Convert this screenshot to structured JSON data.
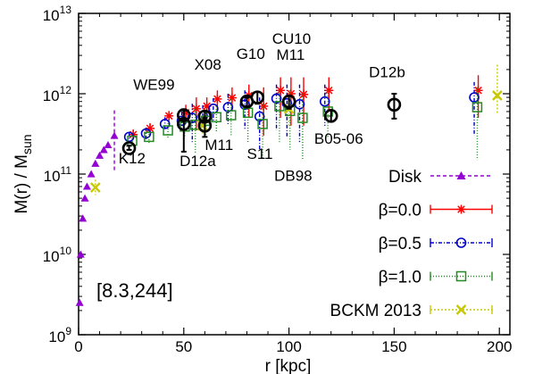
{
  "chart_data": {
    "type": "scatter",
    "xlabel": "r [kpc]",
    "ylabel": "M(r) / M",
    "ylabel_sub": "sun",
    "xlim": [
      0,
      205
    ],
    "ylim_log10": [
      9,
      13
    ],
    "y_scale": "log",
    "x_ticks": [
      0,
      50,
      100,
      150,
      200
    ],
    "y_ticks": [
      {
        "base": "10",
        "exp": "9",
        "log": 9
      },
      {
        "base": "10",
        "exp": "10",
        "log": 10
      },
      {
        "base": "10",
        "exp": "11",
        "log": 11
      },
      {
        "base": "10",
        "exp": "12",
        "log": 12
      },
      {
        "base": "10",
        "exp": "13",
        "log": 13
      }
    ],
    "panel_label": "[8.3,244]",
    "legend_position": "right",
    "series": [
      {
        "name": "Disk",
        "color": "#9400d3",
        "marker": "triangle",
        "points": [
          {
            "x": 0.5,
            "y": 2500000000.0
          },
          {
            "x": 1.0,
            "y": 10000000000.0
          },
          {
            "x": 2.0,
            "y": 28000000000.0
          },
          {
            "x": 3.0,
            "y": 50000000000.0
          },
          {
            "x": 4.0,
            "y": 70000000000.0
          },
          {
            "x": 6.0,
            "y": 100000000000.0
          },
          {
            "x": 8.0,
            "y": 135000000000.0
          },
          {
            "x": 10.0,
            "y": 170000000000.0
          },
          {
            "x": 12.0,
            "y": 200000000000.0
          },
          {
            "x": 14.0,
            "y": 230000000000.0
          },
          {
            "x": 17.0,
            "y": 300000000000.0,
            "lo": 110000000000.0,
            "hi": 620000000000.0
          }
        ]
      },
      {
        "name": "β=0.0",
        "color": "#ff0000",
        "marker": "star",
        "points": [
          {
            "x": 25,
            "y": 310000000000.0,
            "lo": 270000000000.0,
            "hi": 360000000000.0
          },
          {
            "x": 33,
            "y": 370000000000.0,
            "lo": 320000000000.0,
            "hi": 430000000000.0
          },
          {
            "x": 42,
            "y": 530000000000.0,
            "lo": 460000000000.0,
            "hi": 610000000000.0
          },
          {
            "x": 50,
            "y": 580000000000.0,
            "lo": 460000000000.0,
            "hi": 730000000000.0
          },
          {
            "x": 55,
            "y": 650000000000.0,
            "lo": 350000000000.0,
            "hi": 900000000000.0
          },
          {
            "x": 60,
            "y": 700000000000.0,
            "lo": 550000000000.0,
            "hi": 900000000000.0
          },
          {
            "x": 65,
            "y": 860000000000.0,
            "lo": 650000000000.0,
            "hi": 1100000000000.0
          },
          {
            "x": 72,
            "y": 890000000000.0,
            "lo": 600000000000.0,
            "hi": 1200000000000.0
          },
          {
            "x": 80,
            "y": 950000000000.0,
            "lo": 500000000000.0,
            "hi": 1300000000000.0
          },
          {
            "x": 87,
            "y": 700000000000.0,
            "lo": 300000000000.0,
            "hi": 1200000000000.0
          },
          {
            "x": 95,
            "y": 1100000000000.0,
            "lo": 500000000000.0,
            "hi": 1600000000000.0
          },
          {
            "x": 100,
            "y": 1000000000000.0,
            "lo": 400000000000.0,
            "hi": 1600000000000.0
          },
          {
            "x": 106,
            "y": 980000000000.0,
            "lo": 400000000000.0,
            "hi": 1600000000000.0
          },
          {
            "x": 118,
            "y": 1100000000000.0,
            "lo": 600000000000.0,
            "hi": 1600000000000.0
          },
          {
            "x": 189,
            "y": 1100000000000.0,
            "lo": 500000000000.0,
            "hi": 1700000000000.0
          }
        ]
      },
      {
        "name": "β=0.5",
        "color": "#0000cd",
        "marker": "circle",
        "points": [
          {
            "x": 25,
            "y": 290000000000.0,
            "lo": 250000000000.0,
            "hi": 330000000000.0
          },
          {
            "x": 33,
            "y": 320000000000.0,
            "lo": 270000000000.0,
            "hi": 380000000000.0
          },
          {
            "x": 42,
            "y": 420000000000.0,
            "lo": 350000000000.0,
            "hi": 510000000000.0
          },
          {
            "x": 50,
            "y": 460000000000.0,
            "lo": 350000000000.0,
            "hi": 600000000000.0
          },
          {
            "x": 55,
            "y": 500000000000.0,
            "lo": 250000000000.0,
            "hi": 750000000000.0
          },
          {
            "x": 60,
            "y": 530000000000.0,
            "lo": 380000000000.0,
            "hi": 720000000000.0
          },
          {
            "x": 65,
            "y": 650000000000.0,
            "lo": 450000000000.0,
            "hi": 880000000000.0
          },
          {
            "x": 72,
            "y": 680000000000.0,
            "lo": 420000000000.0,
            "hi": 1000000000000.0
          },
          {
            "x": 80,
            "y": 730000000000.0,
            "lo": 350000000000.0,
            "hi": 1100000000000.0
          },
          {
            "x": 87,
            "y": 520000000000.0,
            "lo": 200000000000.0,
            "hi": 900000000000.0
          },
          {
            "x": 95,
            "y": 870000000000.0,
            "lo": 350000000000.0,
            "hi": 1300000000000.0
          },
          {
            "x": 100,
            "y": 760000000000.0,
            "lo": 280000000000.0,
            "hi": 1300000000000.0
          },
          {
            "x": 106,
            "y": 740000000000.0,
            "lo": 250000000000.0,
            "hi": 1300000000000.0
          },
          {
            "x": 118,
            "y": 800000000000.0,
            "lo": 400000000000.0,
            "hi": 1300000000000.0
          },
          {
            "x": 189,
            "y": 900000000000.0,
            "lo": 300000000000.0,
            "hi": 1400000000000.0
          }
        ]
      },
      {
        "name": "β=1.0",
        "color": "#228b22",
        "marker": "square",
        "points": [
          {
            "x": 25,
            "y": 260000000000.0,
            "lo": 220000000000.0,
            "hi": 300000000000.0
          },
          {
            "x": 33,
            "y": 290000000000.0,
            "lo": 240000000000.0,
            "hi": 340000000000.0
          },
          {
            "x": 42,
            "y": 350000000000.0,
            "lo": 280000000000.0,
            "hi": 430000000000.0
          },
          {
            "x": 50,
            "y": 390000000000.0,
            "lo": 280000000000.0,
            "hi": 520000000000.0
          },
          {
            "x": 55,
            "y": 410000000000.0,
            "lo": 180000000000.0,
            "hi": 650000000000.0
          },
          {
            "x": 60,
            "y": 460000000000.0,
            "lo": 310000000000.0,
            "hi": 630000000000.0
          },
          {
            "x": 65,
            "y": 510000000000.0,
            "lo": 330000000000.0,
            "hi": 700000000000.0
          },
          {
            "x": 72,
            "y": 540000000000.0,
            "lo": 300000000000.0,
            "hi": 850000000000.0
          },
          {
            "x": 80,
            "y": 580000000000.0,
            "lo": 250000000000.0,
            "hi": 950000000000.0
          },
          {
            "x": 87,
            "y": 420000000000.0,
            "lo": 150000000000.0,
            "hi": 750000000000.0
          },
          {
            "x": 95,
            "y": 700000000000.0,
            "lo": 250000000000.0,
            "hi": 1100000000000.0
          },
          {
            "x": 100,
            "y": 610000000000.0,
            "lo": 200000000000.0,
            "hi": 1100000000000.0
          },
          {
            "x": 106,
            "y": 500000000000.0,
            "lo": 150000000000.0,
            "hi": 1000000000000.0
          },
          {
            "x": 118,
            "y": 600000000000.0,
            "lo": 280000000000.0,
            "hi": 1100000000000.0
          },
          {
            "x": 189,
            "y": 680000000000.0,
            "lo": 150000000000.0,
            "hi": 1200000000000.0
          }
        ]
      },
      {
        "name": "BCKM 2013",
        "color": "#c8c800",
        "marker": "x",
        "points": [
          {
            "x": 8,
            "y": 68000000000.0,
            "lo": 55000000000.0,
            "hi": 85000000000.0
          },
          {
            "x": 59,
            "y": 400000000000.0,
            "lo": 320000000000.0,
            "hi": 500000000000.0
          },
          {
            "x": 100,
            "y": 650000000000.0,
            "lo": 380000000000.0,
            "hi": 950000000000.0
          },
          {
            "x": 199,
            "y": 950000000000.0,
            "lo": 550000000000.0,
            "hi": 2300000000000.0
          }
        ]
      }
    ],
    "observations": {
      "color": "#000000",
      "marker": "circle",
      "points": [
        {
          "x": 24,
          "y": 210000000000.0,
          "lo": 200000000000.0,
          "hi": 225000000000.0
        },
        {
          "x": 50,
          "y": 540000000000.0,
          "lo": 460000000000.0,
          "hi": 620000000000.0
        },
        {
          "x": 50,
          "y": 420000000000.0,
          "lo": 190000000000.0,
          "hi": 640000000000.0
        },
        {
          "x": 60,
          "y": 520000000000.0,
          "lo": 440000000000.0,
          "hi": 600000000000.0
        },
        {
          "x": 60,
          "y": 400000000000.0,
          "lo": 290000000000.0,
          "hi": 500000000000.0
        },
        {
          "x": 80,
          "y": 800000000000.0,
          "lo": 700000000000.0,
          "hi": 900000000000.0
        },
        {
          "x": 85,
          "y": 900000000000.0,
          "lo": 750000000000.0,
          "hi": 1050000000000.0
        },
        {
          "x": 100,
          "y": 800000000000.0,
          "lo": 650000000000.0,
          "hi": 950000000000.0
        },
        {
          "x": 120,
          "y": 530000000000.0,
          "lo": 450000000000.0,
          "hi": 620000000000.0
        },
        {
          "x": 150,
          "y": 730000000000.0,
          "lo": 490000000000.0,
          "hi": 1000000000000.0
        }
      ]
    },
    "annotations": [
      {
        "text": "WE99",
        "x": 26,
        "y": 1120000000000.0
      },
      {
        "text": "X08",
        "x": 55,
        "y": 2000000000000.0
      },
      {
        "text": "G10",
        "x": 75,
        "y": 2700000000000.0
      },
      {
        "text": "CU10",
        "x": 92,
        "y": 4200000000000.0
      },
      {
        "text": "M11",
        "x": 94,
        "y": 2650000000000.0
      },
      {
        "text": "D12b",
        "x": 138,
        "y": 1600000000000.0
      },
      {
        "text": "K12",
        "x": 19,
        "y": 136000000000.0
      },
      {
        "text": "M11",
        "x": 60,
        "y": 200000000000.0
      },
      {
        "text": "D12a",
        "x": 48,
        "y": 126000000000.0
      },
      {
        "text": "S11",
        "x": 80,
        "y": 155000000000.0
      },
      {
        "text": "B05-06",
        "x": 112,
        "y": 240000000000.0
      },
      {
        "text": "DB98",
        "x": 93,
        "y": 83000000000.0
      }
    ]
  }
}
